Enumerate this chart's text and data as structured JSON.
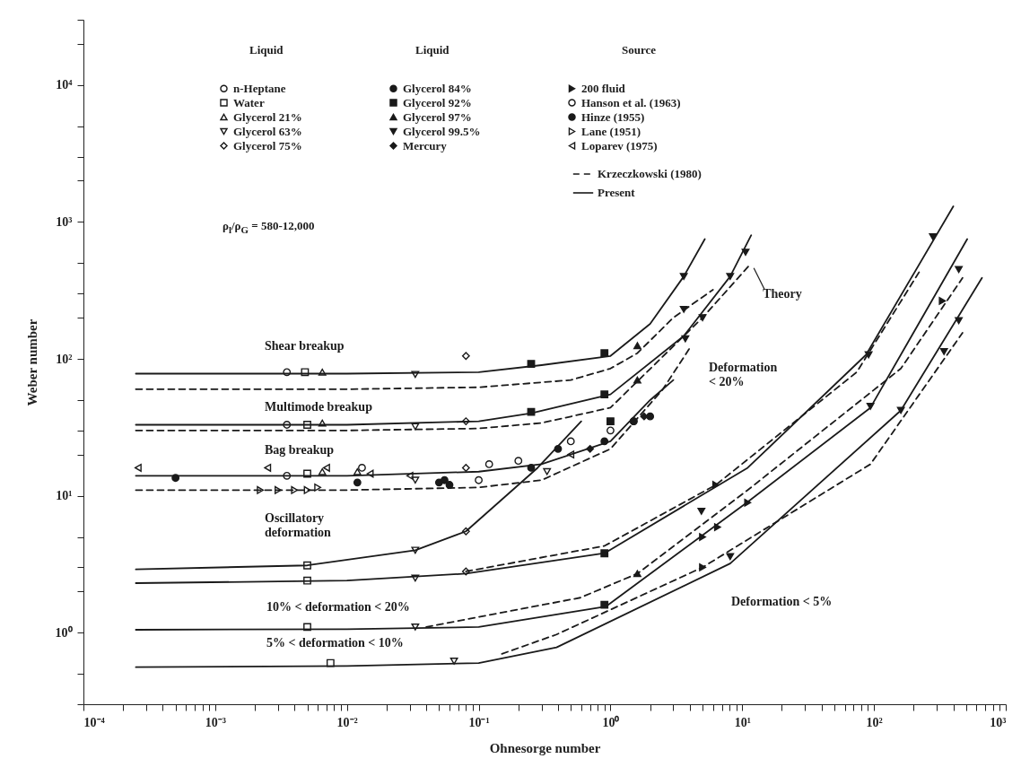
{
  "chart_data": {
    "type": "scatter",
    "xlabel": "Ohnesorge number",
    "ylabel": "Weber number",
    "log": "xy",
    "grid": false,
    "legend": "top",
    "xlim": [
      0.0001,
      1000
    ],
    "ylim": [
      0.3,
      30000
    ],
    "xticks": [
      {
        "value": 0.0001,
        "label": "10⁻⁴"
      },
      {
        "value": 0.0002,
        "label": null
      },
      {
        "value": 0.0003,
        "label": null
      },
      {
        "value": 0.0004,
        "label": null
      },
      {
        "value": 0.0005,
        "label": null
      },
      {
        "value": 0.0006,
        "label": null
      },
      {
        "value": 0.0007,
        "label": null
      },
      {
        "value": 0.0008,
        "label": null
      },
      {
        "value": 0.0009,
        "label": null
      },
      {
        "value": 0.001,
        "label": "10⁻³"
      },
      {
        "value": 0.002,
        "label": null
      },
      {
        "value": 0.003,
        "label": null
      },
      {
        "value": 0.004,
        "label": null
      },
      {
        "value": 0.005,
        "label": null
      },
      {
        "value": 0.006,
        "label": null
      },
      {
        "value": 0.007,
        "label": null
      },
      {
        "value": 0.008,
        "label": null
      },
      {
        "value": 0.009,
        "label": null
      },
      {
        "value": 0.01,
        "label": "10⁻²"
      },
      {
        "value": 0.02,
        "label": null
      },
      {
        "value": 0.03,
        "label": null
      },
      {
        "value": 0.04,
        "label": null
      },
      {
        "value": 0.05,
        "label": null
      },
      {
        "value": 0.06,
        "label": null
      },
      {
        "value": 0.07,
        "label": null
      },
      {
        "value": 0.08,
        "label": null
      },
      {
        "value": 0.09,
        "label": null
      },
      {
        "value": 0.1,
        "label": "10⁻¹"
      },
      {
        "value": 0.2,
        "label": null
      },
      {
        "value": 0.3,
        "label": null
      },
      {
        "value": 0.4,
        "label": null
      },
      {
        "value": 0.5,
        "label": null
      },
      {
        "value": 0.6,
        "label": null
      },
      {
        "value": 0.7,
        "label": null
      },
      {
        "value": 0.8,
        "label": null
      },
      {
        "value": 0.9,
        "label": null
      },
      {
        "value": 1,
        "label": "10⁰"
      },
      {
        "value": 2,
        "label": null
      },
      {
        "value": 3,
        "label": null
      },
      {
        "value": 4,
        "label": null
      },
      {
        "value": 5,
        "label": null
      },
      {
        "value": 6,
        "label": null
      },
      {
        "value": 7,
        "label": null
      },
      {
        "value": 8,
        "label": null
      },
      {
        "value": 9,
        "label": null
      },
      {
        "value": 10,
        "label": "10¹"
      },
      {
        "value": 20,
        "label": null
      },
      {
        "value": 30,
        "label": null
      },
      {
        "value": 40,
        "label": null
      },
      {
        "value": 50,
        "label": null
      },
      {
        "value": 60,
        "label": null
      },
      {
        "value": 70,
        "label": null
      },
      {
        "value": 80,
        "label": null
      },
      {
        "value": 90,
        "label": null
      },
      {
        "value": 100,
        "label": "10²"
      },
      {
        "value": 200,
        "label": null
      },
      {
        "value": 300,
        "label": null
      },
      {
        "value": 400,
        "label": null
      },
      {
        "value": 500,
        "label": null
      },
      {
        "value": 600,
        "label": null
      },
      {
        "value": 700,
        "label": null
      },
      {
        "value": 800,
        "label": null
      },
      {
        "value": 900,
        "label": null
      },
      {
        "value": 1000,
        "label": "10³"
      }
    ],
    "yticks": [
      {
        "value": 0.3,
        "label": null
      },
      {
        "value": 0.5,
        "label": null
      },
      {
        "value": 1,
        "label": "10⁰"
      },
      {
        "value": 2,
        "label": null
      },
      {
        "value": 3,
        "label": null
      },
      {
        "value": 5,
        "label": null
      },
      {
        "value": 10,
        "label": "10¹"
      },
      {
        "value": 20,
        "label": null
      },
      {
        "value": 30,
        "label": null
      },
      {
        "value": 50,
        "label": null
      },
      {
        "value": 100,
        "label": "10²"
      },
      {
        "value": 200,
        "label": null
      },
      {
        "value": 300,
        "label": null
      },
      {
        "value": 500,
        "label": null
      },
      {
        "value": 1000,
        "label": "10³"
      },
      {
        "value": 2000,
        "label": null
      },
      {
        "value": 3000,
        "label": null
      },
      {
        "value": 5000,
        "label": null
      },
      {
        "value": 10000,
        "label": "10⁴"
      },
      {
        "value": 20000,
        "label": null
      },
      {
        "value": 30000,
        "label": null
      }
    ],
    "annotations": [
      "Liquid",
      "Liquid",
      "Source",
      "ρ$_{l}$/ρ$_{G}$ = 580-12,000",
      "Shear breakup",
      "Multimode breakup",
      "Bag breakup",
      "Oscillatory\ndeformation",
      "10% < deformation < 20%",
      "5% < deformation < 10%",
      "Deformation\n< 20%",
      "Deformation < 5%",
      {
        "text": "Theory",
        "x": 11.5,
        "y": 490
      }
    ],
    "series": [
      {
        "name": "n-Heptane",
        "marker": "circle-open",
        "color": "#1a1a1a",
        "x": [
          0.0035,
          0.0035,
          0.0035,
          0.1,
          0.2,
          0.5,
          1,
          1.5
        ],
        "values": [
          80,
          33,
          14,
          13,
          18,
          25,
          30,
          35
        ]
      },
      {
        "name": "Water",
        "marker": "square-open",
        "color": "#1a1a1a",
        "x": [
          0.0048,
          0.005,
          0.005,
          0.005,
          0.005,
          0.005,
          0.0075
        ],
        "values": [
          80,
          33,
          14.5,
          3.1,
          2.4,
          1.1,
          0.6
        ]
      },
      {
        "name": "Glycerol 21%",
        "marker": "triangle-open",
        "color": "#1a1a1a",
        "x": [
          0.0065,
          0.0065,
          0.0065,
          0.012
        ],
        "values": [
          80,
          34,
          15,
          15
        ]
      },
      {
        "name": "Glycerol 63%",
        "marker": "triangle-down-open",
        "color": "#1a1a1a",
        "x": [
          0.033,
          0.033,
          0.033,
          0.033,
          0.033,
          0.033,
          0.065,
          0.33
        ],
        "values": [
          77,
          32,
          13,
          4,
          2.5,
          1.1,
          0.62,
          15
        ]
      },
      {
        "name": "Glycerol 75%",
        "marker": "diamond-open",
        "color": "#1a1a1a",
        "x": [
          0.08,
          0.08,
          0.08,
          0.08,
          0.08
        ],
        "values": [
          105,
          35,
          16,
          5.5,
          2.8
        ]
      },
      {
        "name": "Glycerol 84%",
        "marker": "circle",
        "color": "#1a1a1a",
        "x": [
          0.0005,
          0.012,
          0.05,
          0.06,
          0.25,
          0.9,
          1.5,
          2
        ],
        "values": [
          13.5,
          12.5,
          12.5,
          12,
          16,
          25,
          35,
          38
        ]
      },
      {
        "name": "Glycerol 92%",
        "marker": "square",
        "color": "#1a1a1a",
        "x": [
          0.25,
          0.25,
          0.9,
          0.9,
          0.9,
          0.9,
          1
        ],
        "values": [
          92,
          41,
          110,
          55,
          3.8,
          1.6,
          35
        ]
      },
      {
        "name": "Glycerol 97%",
        "marker": "triangle",
        "color": "#1a1a1a",
        "x": [
          1.6,
          1.6,
          1.6
        ],
        "values": [
          125,
          70,
          2.7
        ]
      },
      {
        "name": "Glycerol 99.5%",
        "marker": "triangle-down",
        "color": "#1a1a1a",
        "x": [
          3.6,
          3.6,
          3.7,
          5,
          8.1,
          10.6,
          4.9,
          8.1,
          91,
          94,
          160,
          280,
          340,
          440,
          440
        ],
        "values": [
          400,
          230,
          140,
          200,
          400,
          600,
          7.7,
          3.6,
          107,
          45,
          42,
          780,
          113,
          450,
          190
        ]
      },
      {
        "name": "Mercury",
        "marker": "diamond",
        "color": "#1a1a1a",
        "x": [
          0.7,
          1.8
        ],
        "values": [
          22,
          38
        ]
      },
      {
        "name": "200 fluid",
        "marker": "triangle-right",
        "color": "#1a1a1a",
        "x": [
          5,
          5,
          6.3,
          6.5,
          11,
          330
        ],
        "values": [
          3.0,
          5,
          12,
          5.9,
          8.9,
          265
        ]
      },
      {
        "name": "Hanson et al. (1963)",
        "marker": "circle-open",
        "color": "#1a1a1a",
        "x": [
          0.013,
          0.12
        ],
        "values": [
          16,
          17
        ]
      },
      {
        "name": "Hinze (1955)",
        "marker": "circle",
        "color": "#1a1a1a",
        "x": [
          0.055,
          0.4
        ],
        "values": [
          13,
          22
        ]
      },
      {
        "name": "Lane (1951)",
        "marker": "triangle-right-open",
        "color": "#1a1a1a",
        "x": [
          0.0022,
          0.003,
          0.004,
          0.005,
          0.006
        ],
        "values": [
          11,
          11,
          11,
          11,
          11.5
        ]
      },
      {
        "name": "Loparev (1975)",
        "marker": "triangle-left-open",
        "color": "#1a1a1a",
        "x": [
          0.00026,
          0.0025,
          0.007,
          0.015,
          0.03,
          0.5
        ],
        "values": [
          16,
          16,
          16,
          14.5,
          14,
          20
        ]
      },
      {
        "name": "Krzeczkowski (1980)",
        "type": "line",
        "line_style": "dashed",
        "color": "#1a1a1a",
        "x": [
          0.00025,
          0.01,
          0.1,
          0.5,
          1,
          1.6,
          3,
          6
        ],
        "values": [
          60,
          60,
          62,
          70,
          85,
          110,
          200,
          320
        ]
      },
      {
        "type": "line",
        "line_style": "dashed",
        "color": "#1a1a1a",
        "x": [
          0.00025,
          0.01,
          0.1,
          0.3,
          1,
          5,
          11.5
        ],
        "values": [
          30,
          30,
          31,
          34,
          44,
          200,
          490
        ]
      },
      {
        "type": "line",
        "line_style": "dashed",
        "color": "#1a1a1a",
        "x": [
          0.00025,
          0.01,
          0.1,
          0.3,
          1,
          2.5,
          4
        ],
        "values": [
          11,
          11,
          11.5,
          13,
          22,
          60,
          120
        ]
      },
      {
        "type": "line",
        "line_style": "dashed",
        "color": "#1a1a1a",
        "x": [
          0.08,
          0.9,
          6.3,
          74,
          220
        ],
        "values": [
          2.8,
          4.3,
          12,
          80,
          430
        ]
      },
      {
        "type": "line",
        "line_style": "dashed",
        "color": "#1a1a1a",
        "x": [
          0.04,
          0.59,
          1.6,
          11,
          160,
          470
        ],
        "values": [
          1.1,
          1.8,
          2.7,
          11,
          85,
          390
        ]
      },
      {
        "type": "line",
        "line_style": "dashed",
        "color": "#1a1a1a",
        "x": [
          0.15,
          0.39,
          5,
          94,
          470
        ],
        "values": [
          0.7,
          0.97,
          3.0,
          17,
          155
        ]
      },
      {
        "name": "Present",
        "type": "line",
        "line_style": "solid",
        "color": "#1a1a1a",
        "x": [
          0.00025,
          0.01,
          0.1,
          0.3,
          1,
          2,
          3.6,
          5.2
        ],
        "values": [
          78,
          78,
          80,
          90,
          105,
          180,
          400,
          750
        ]
      },
      {
        "type": "line",
        "line_style": "solid",
        "color": "#1a1a1a",
        "x": [
          0.00025,
          0.01,
          0.1,
          0.25,
          1,
          3.6,
          8.1,
          11.7
        ],
        "values": [
          33,
          33,
          35,
          40,
          55,
          147,
          400,
          800
        ]
      },
      {
        "type": "line",
        "line_style": "solid",
        "color": "#1a1a1a",
        "x": [
          0.00025,
          0.01,
          0.1,
          0.3,
          1,
          2,
          3
        ],
        "values": [
          14,
          14,
          15,
          17,
          25,
          50,
          70
        ]
      },
      {
        "type": "line",
        "line_style": "solid",
        "color": "#1a1a1a",
        "x": [
          0.00025,
          0.005,
          0.033,
          0.08,
          0.28,
          0.6
        ],
        "values": [
          2.9,
          3.1,
          4,
          5.5,
          16,
          35
        ]
      },
      {
        "type": "line",
        "line_style": "solid",
        "color": "#1a1a1a",
        "x": [
          0.00025,
          0.01,
          0.08,
          0.9,
          11,
          87,
          400
        ],
        "values": [
          2.3,
          2.4,
          2.7,
          3.8,
          16,
          107,
          1300
        ]
      },
      {
        "type": "line",
        "line_style": "solid",
        "color": "#1a1a1a",
        "x": [
          0.00025,
          0.01,
          0.1,
          0.92,
          11,
          94,
          510
        ],
        "values": [
          1.05,
          1.06,
          1.1,
          1.55,
          9,
          44,
          750
        ]
      },
      {
        "type": "line",
        "line_style": "solid",
        "color": "#1a1a1a",
        "x": [
          0.00025,
          0.01,
          0.1,
          0.39,
          8.1,
          160,
          660
        ],
        "values": [
          0.56,
          0.57,
          0.6,
          0.78,
          3.2,
          42,
          390
        ]
      }
    ]
  }
}
